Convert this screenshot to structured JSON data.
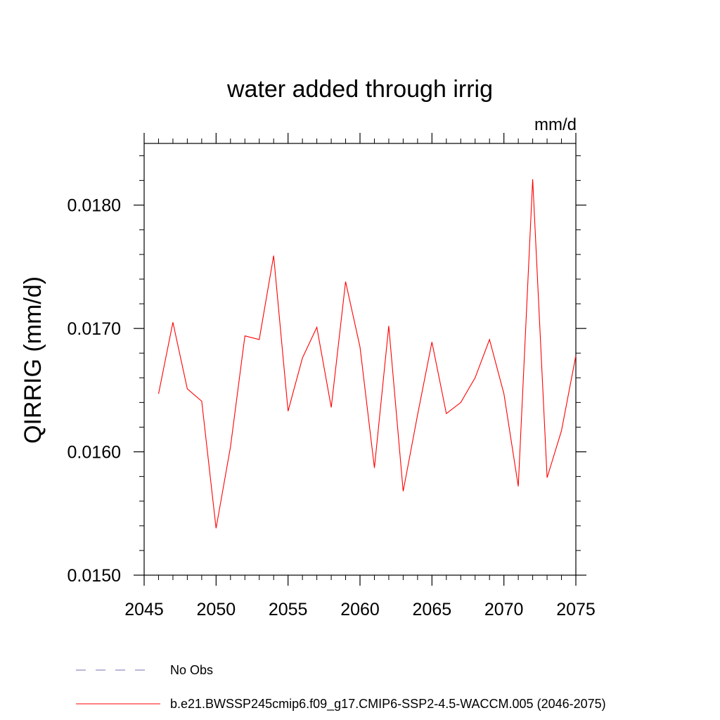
{
  "chart_data": {
    "type": "line",
    "title": "water added through irrig",
    "units_label": "mm/d",
    "ylabel": "QIRRIG  (mm/d)",
    "xlabel": "",
    "xlim": [
      2045,
      2075
    ],
    "ylim": [
      0.015,
      0.0185
    ],
    "x_ticks": [
      2045,
      2050,
      2055,
      2060,
      2065,
      2070,
      2075
    ],
    "x_tick_labels": [
      "2045",
      "2050",
      "2055",
      "2060",
      "2065",
      "2070",
      "2075"
    ],
    "y_ticks": [
      0.015,
      0.016,
      0.017,
      0.018
    ],
    "y_tick_labels": [
      "0.0150",
      "0.0160",
      "0.0170",
      "0.0180"
    ],
    "x_minor_step": 1,
    "y_minor_step": 0.0002,
    "grid": false,
    "legend_position": "bottom",
    "legend": [
      {
        "label": "No Obs",
        "color": "#7a6fb0",
        "style": "dashed"
      },
      {
        "label": "b.e21.BWSSP245cmip6.f09_g17.CMIP6-SSP2-4.5-WACCM.005 (2046-2075)",
        "color": "#ff0000",
        "style": "solid"
      }
    ],
    "series": [
      {
        "name": "b.e21.BWSSP245cmip6.f09_g17.CMIP6-SSP2-4.5-WACCM.005 (2046-2075)",
        "color": "#ff0000",
        "x": [
          2046,
          2047,
          2048,
          2049,
          2050,
          2051,
          2052,
          2053,
          2054,
          2055,
          2056,
          2057,
          2058,
          2059,
          2060,
          2061,
          2062,
          2063,
          2064,
          2065,
          2066,
          2067,
          2068,
          2069,
          2070,
          2071,
          2072,
          2073,
          2074,
          2075
        ],
        "values": [
          0.01647,
          0.01705,
          0.01651,
          0.01641,
          0.01538,
          0.01604,
          0.01694,
          0.01691,
          0.01759,
          0.01633,
          0.01676,
          0.01701,
          0.01636,
          0.01738,
          0.01685,
          0.01587,
          0.01702,
          0.01568,
          0.0163,
          0.01689,
          0.01631,
          0.0164,
          0.0166,
          0.01691,
          0.01647,
          0.01572,
          0.01821,
          0.01579,
          0.01617,
          0.01678
        ]
      }
    ]
  }
}
